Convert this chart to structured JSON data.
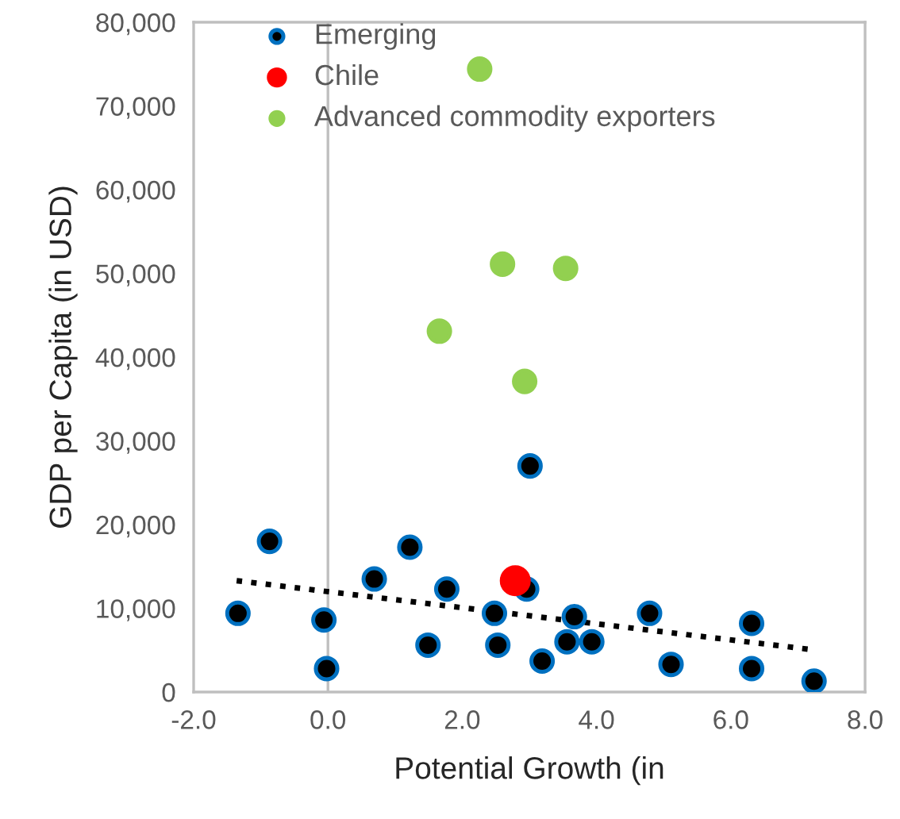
{
  "chart_data": {
    "type": "scatter",
    "xlabel": "Potential Growth (in",
    "ylabel": "GDP per Capita (in USD)",
    "xlim": [
      -2,
      8
    ],
    "ylim": [
      0,
      80000
    ],
    "xticks": [
      {
        "value": -2,
        "label": "-2.0"
      },
      {
        "value": 0,
        "label": "0.0"
      },
      {
        "value": 2,
        "label": "2.0"
      },
      {
        "value": 4,
        "label": "4.0"
      },
      {
        "value": 6,
        "label": "6.0"
      },
      {
        "value": 8,
        "label": "8.0"
      }
    ],
    "yticks": [
      0,
      {
        "value": 10000,
        "label": "10,000"
      },
      {
        "value": 20000,
        "label": "20,000"
      },
      {
        "value": 30000,
        "label": "30,000"
      },
      {
        "value": 40000,
        "label": "40,000"
      },
      {
        "value": 50000,
        "label": "50,000"
      },
      {
        "value": 60000,
        "label": "60,000"
      },
      {
        "value": 70000,
        "label": "70,000"
      },
      {
        "value": 80000,
        "label": "80,000"
      }
    ],
    "grid": false,
    "legend": "top left",
    "marker": "circle",
    "ref_lines": [
      {
        "axis": "x",
        "value": 0,
        "color": "#bfbfbf"
      }
    ],
    "series": [
      {
        "name": "Emerging",
        "color": "#000000",
        "x": [
          -1.34,
          -0.87,
          -0.06,
          -0.02,
          0.69,
          1.22,
          1.49,
          1.77,
          2.48,
          2.53,
          3.01,
          2.96,
          3.19,
          3.56,
          3.67,
          3.93,
          4.79,
          5.11,
          6.31,
          6.31,
          7.24
        ],
        "values": [
          9400,
          18000,
          8600,
          2800,
          13500,
          17300,
          5600,
          12300,
          9400,
          5600,
          27000,
          12300,
          3700,
          6000,
          9000,
          6000,
          9400,
          3300,
          8200,
          2800,
          1300
        ]
      },
      {
        "name": "Chile",
        "color": "#ff0000",
        "x": [
          2.79
        ],
        "values": [
          13300
        ]
      },
      {
        "name": "Advanced commodity exporters",
        "color": "#92d050",
        "x": [
          2.26,
          2.6,
          3.54,
          1.66,
          2.93
        ],
        "values": [
          74400,
          51100,
          50600,
          43100,
          37100
        ]
      },
      {
        "type": "line",
        "color": "#000000",
        "line_style": "dotted",
        "marker": "none",
        "x": [
          -1.36,
          7.17
        ],
        "values": [
          13300,
          5100
        ]
      }
    ]
  }
}
